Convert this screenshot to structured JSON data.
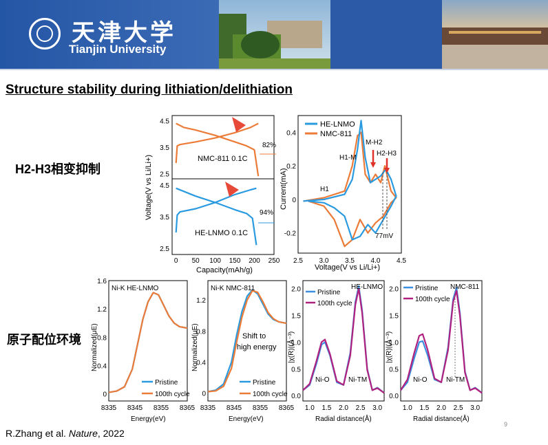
{
  "header": {
    "logo_cn": "天津大学",
    "logo_en": "Tianjin University"
  },
  "title": "Structure stability during lithiation/delithiation",
  "labels": {
    "h2h3": "H2-H3相变抑制",
    "coordination": "原子配位环境"
  },
  "reference": {
    "authors": "R.Zhang et al. ",
    "journal": "Nature",
    "year": ", 2022"
  },
  "page_number": "9",
  "colors": {
    "nmc": "#ec7b38",
    "he": "#2a9ae0",
    "red": "#e0302a",
    "magenta": "#b0217f",
    "blue": "#3c8ee0"
  },
  "chart_data": [
    {
      "type": "line",
      "panel": "charge-discharge-nmc",
      "annotation": "NMC-811 0.1C",
      "ylabel": "Voltage(V vs Li/Li+)",
      "y_ticks": [
        "4.5",
        "3.5",
        "2.5"
      ],
      "ylim": [
        2.3,
        4.7
      ],
      "retention_label": "82%",
      "series": [
        {
          "x": [
            0,
            20,
            50,
            100,
            150,
            180,
            200,
            210
          ],
          "y": [
            4.4,
            4.25,
            4.15,
            3.95,
            3.7,
            3.55,
            3.4,
            2.4
          ]
        },
        {
          "x": [
            0,
            3,
            10,
            50,
            100,
            150,
            190,
            210
          ],
          "y": [
            2.9,
            3.55,
            3.6,
            3.7,
            3.85,
            4.05,
            4.25,
            4.4
          ]
        }
      ]
    },
    {
      "type": "line",
      "panel": "charge-discharge-he",
      "annotation": "HE-LNMO 0.1C",
      "xlabel": "Capacity(mAh/g)",
      "x_ticks": [
        "0",
        "50",
        "100",
        "150",
        "200",
        "250"
      ],
      "y_ticks": [
        "4.5",
        "3.5",
        "2.5"
      ],
      "xlim": [
        -10,
        250
      ],
      "ylim": [
        2.3,
        4.7
      ],
      "retention_label": "94%",
      "series": [
        {
          "x": [
            0,
            20,
            50,
            100,
            150,
            180,
            195,
            205
          ],
          "y": [
            4.4,
            4.3,
            4.15,
            3.95,
            3.72,
            3.6,
            3.45,
            2.6
          ]
        },
        {
          "x": [
            0,
            3,
            10,
            50,
            100,
            150,
            190,
            205
          ],
          "y": [
            3.0,
            3.55,
            3.65,
            3.75,
            3.95,
            4.2,
            4.35,
            4.4
          ]
        }
      ]
    },
    {
      "type": "line",
      "panel": "cv",
      "xlabel": "Voltage(V vs Li/Li+)",
      "ylabel": "Current(mA)",
      "x_ticks": [
        "2.5",
        "3.0",
        "3.5",
        "4.0",
        "4.5"
      ],
      "y_ticks": [
        "0.4",
        "0.2",
        "0",
        "-0.2"
      ],
      "xlim": [
        2.5,
        4.5
      ],
      "ylim": [
        -0.32,
        0.5
      ],
      "annotations": [
        "H1",
        "H1-M",
        "M-H2",
        "H2-H3",
        "77mV"
      ],
      "series": [
        {
          "name": "HE-LNMO",
          "x": [
            2.6,
            3.0,
            3.4,
            3.55,
            3.65,
            3.72,
            3.8,
            3.9,
            4.1,
            4.2,
            4.3,
            4.4,
            4.3,
            4.15,
            4.0,
            3.85,
            3.7,
            3.55,
            3.4,
            3.2,
            3.0,
            2.7
          ],
          "y": [
            -0.01,
            0.0,
            0.03,
            0.12,
            0.3,
            0.47,
            0.25,
            0.1,
            0.14,
            0.18,
            0.12,
            0.02,
            -0.04,
            -0.12,
            -0.2,
            -0.15,
            -0.22,
            -0.24,
            -0.1,
            -0.05,
            -0.02,
            -0.01
          ]
        },
        {
          "name": "NMC-811",
          "x": [
            2.6,
            3.0,
            3.4,
            3.55,
            3.65,
            3.72,
            3.8,
            3.9,
            4.0,
            4.1,
            4.18,
            4.3,
            4.4,
            4.3,
            4.15,
            4.0,
            3.85,
            3.7,
            3.55,
            3.4,
            3.2,
            3.0,
            2.7
          ],
          "y": [
            -0.01,
            0.01,
            0.05,
            0.2,
            0.38,
            0.4,
            0.15,
            0.1,
            0.15,
            0.1,
            0.2,
            0.05,
            0.01,
            -0.02,
            -0.1,
            -0.14,
            -0.2,
            -0.12,
            -0.24,
            -0.28,
            -0.12,
            -0.04,
            -0.01
          ]
        }
      ]
    },
    {
      "type": "line",
      "panel": "xanes-he",
      "title": "Ni-K HE-LNMO",
      "xlabel": "Energy(eV)",
      "ylabel": "Normalized(μE)",
      "x_ticks": [
        "8335",
        "8345",
        "8355",
        "8365"
      ],
      "y_ticks": [
        "1.6",
        "1.2",
        "0.8",
        "0.4",
        "0"
      ],
      "xlim": [
        8335,
        8365
      ],
      "ylim": [
        -0.1,
        1.6
      ],
      "series": [
        {
          "name": "Pristine",
          "x": [
            8335,
            8338,
            8341,
            8344,
            8346,
            8348,
            8350,
            8352,
            8354,
            8356,
            8358,
            8360,
            8362,
            8365
          ],
          "y": [
            0.02,
            0.04,
            0.1,
            0.35,
            0.7,
            1.05,
            1.3,
            1.43,
            1.4,
            1.25,
            1.1,
            1.0,
            0.95,
            0.93
          ]
        },
        {
          "name": "100th cycle",
          "x": [
            8335,
            8338,
            8341,
            8344,
            8346,
            8348,
            8350,
            8352,
            8354,
            8356,
            8358,
            8360,
            8362,
            8365
          ],
          "y": [
            0.02,
            0.04,
            0.1,
            0.35,
            0.7,
            1.05,
            1.3,
            1.43,
            1.4,
            1.25,
            1.1,
            1.0,
            0.95,
            0.93
          ]
        }
      ]
    },
    {
      "type": "line",
      "panel": "xanes-nmc",
      "title": "Ni-K NMC-811",
      "annotation": "Shift to high energy",
      "xlabel": "Energy(eV)",
      "ylabel": "Normalized(μE)",
      "x_ticks": [
        "8335",
        "8345",
        "8355",
        "8365"
      ],
      "y_ticks": [
        "1.2",
        "0.8",
        "0.4",
        "0"
      ],
      "xlim": [
        8335,
        8365
      ],
      "ylim": [
        -0.1,
        1.45
      ],
      "series": [
        {
          "name": "Pristine",
          "x": [
            8335,
            8338,
            8341,
            8344,
            8346,
            8348,
            8350,
            8352,
            8354,
            8356,
            8358,
            8360,
            8362,
            8365
          ],
          "y": [
            0.02,
            0.04,
            0.12,
            0.4,
            0.75,
            1.05,
            1.25,
            1.33,
            1.28,
            1.15,
            1.02,
            0.95,
            0.92,
            0.9
          ]
        },
        {
          "name": "100th cycle",
          "x": [
            8335,
            8338,
            8341,
            8344,
            8346,
            8348,
            8350,
            8352,
            8354,
            8356,
            8358,
            8360,
            8362,
            8365
          ],
          "y": [
            0.02,
            0.03,
            0.09,
            0.32,
            0.66,
            0.98,
            1.2,
            1.32,
            1.3,
            1.18,
            1.04,
            0.96,
            0.92,
            0.9
          ]
        }
      ]
    },
    {
      "type": "line",
      "panel": "exafs-he",
      "title": "HE-LNMO",
      "annotations": [
        "Ni-O",
        "Ni-TM"
      ],
      "xlabel": "Radial distance(Å)",
      "ylabel": "|χ(R)|(Å⁻³)",
      "x_ticks": [
        "1.0",
        "1.5",
        "2.0",
        "2.5",
        "3.0"
      ],
      "y_ticks": [
        "2.0",
        "1.5",
        "1.0",
        "0.5",
        "0.0"
      ],
      "xlim": [
        0.8,
        3.2
      ],
      "ylim": [
        -0.1,
        2.15
      ],
      "series": [
        {
          "name": "Pristine",
          "x": [
            0.8,
            1.0,
            1.2,
            1.35,
            1.45,
            1.6,
            1.8,
            2.0,
            2.2,
            2.35,
            2.45,
            2.55,
            2.7,
            2.85,
            3.0,
            3.2
          ],
          "y": [
            0.1,
            0.2,
            0.6,
            0.95,
            1.0,
            0.75,
            0.25,
            0.2,
            0.8,
            1.75,
            2.05,
            1.6,
            0.5,
            0.1,
            0.15,
            0.05
          ]
        },
        {
          "name": "100th cycle",
          "x": [
            0.8,
            1.0,
            1.2,
            1.35,
            1.45,
            1.6,
            1.8,
            2.0,
            2.2,
            2.35,
            2.45,
            2.55,
            2.7,
            2.85,
            3.0,
            3.2
          ],
          "y": [
            0.1,
            0.22,
            0.65,
            1.0,
            1.05,
            0.78,
            0.27,
            0.2,
            0.75,
            1.7,
            2.0,
            1.55,
            0.48,
            0.1,
            0.14,
            0.05
          ]
        }
      ]
    },
    {
      "type": "line",
      "panel": "exafs-nmc",
      "title": "NMC-811",
      "annotations": [
        "Ni-O",
        "Ni-TM"
      ],
      "xlabel": "Radial distance(Å)",
      "ylabel": "|χ(R)|(Å⁻³)",
      "x_ticks": [
        "1.0",
        "1.5",
        "2.0",
        "2.5",
        "3.0"
      ],
      "y_ticks": [
        "2.0",
        "1.5",
        "1.0",
        "0.5",
        "0.0"
      ],
      "xlim": [
        0.8,
        3.2
      ],
      "ylim": [
        -0.1,
        2.15
      ],
      "series": [
        {
          "name": "Pristine",
          "x": [
            0.8,
            1.0,
            1.2,
            1.35,
            1.45,
            1.6,
            1.8,
            2.0,
            2.2,
            2.35,
            2.45,
            2.55,
            2.7,
            2.85,
            3.0,
            3.2
          ],
          "y": [
            0.1,
            0.25,
            0.7,
            1.0,
            1.02,
            0.75,
            0.3,
            0.25,
            0.9,
            1.8,
            2.02,
            1.55,
            0.45,
            0.1,
            0.15,
            0.05
          ]
        },
        {
          "name": "100th cycle",
          "x": [
            0.8,
            1.0,
            1.2,
            1.35,
            1.45,
            1.6,
            1.8,
            2.0,
            2.2,
            2.35,
            2.45,
            2.55,
            2.7,
            2.85,
            3.0,
            3.2
          ],
          "y": [
            0.1,
            0.3,
            0.8,
            1.12,
            1.15,
            0.85,
            0.32,
            0.25,
            0.85,
            1.75,
            1.96,
            1.5,
            0.43,
            0.1,
            0.14,
            0.05
          ]
        }
      ]
    }
  ]
}
